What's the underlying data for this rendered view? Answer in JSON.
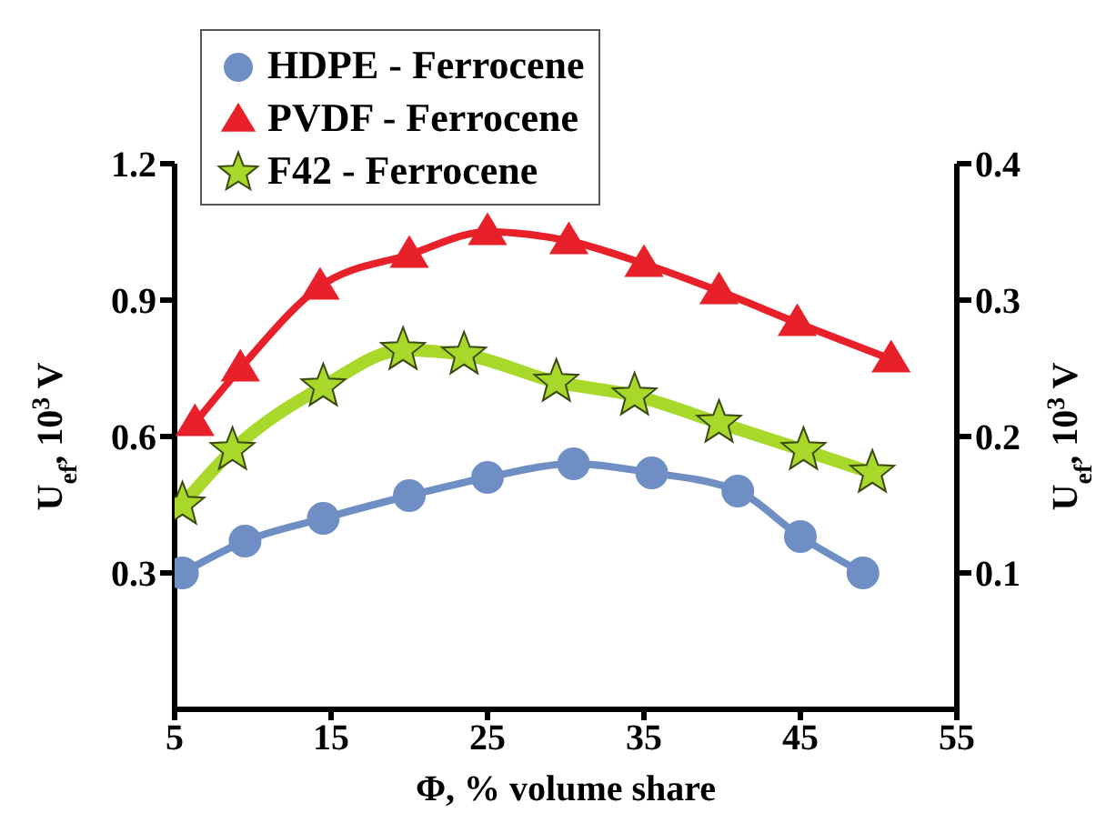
{
  "chart_data": {
    "type": "line",
    "xlabel": "Φ, % volume share",
    "ylabel": "U$_{ef}$, 10$^{3}$ V",
    "y2label": "U$_{ef}$, 10$^{3}$ V",
    "xlim": [
      5,
      55
    ],
    "xticks": [
      5,
      15,
      25,
      35,
      45,
      55
    ],
    "ylim": [
      0,
      1.2
    ],
    "yticks": [
      0.3,
      0.6,
      0.9,
      1.2
    ],
    "y2lim": [
      0,
      0.4
    ],
    "y2ticks": [
      0.1,
      0.2,
      0.3,
      0.4
    ],
    "grid": false,
    "legend": "top left",
    "line_style": "solid",
    "series": [
      {
        "name": "HDPE - Ferrocene",
        "color": "#6f8fc4",
        "marker": "circle",
        "x": [
          5.5,
          9.5,
          14.5,
          20,
          25,
          30.5,
          35.5,
          41,
          45,
          49
        ],
        "values": [
          0.3,
          0.37,
          0.42,
          0.47,
          0.51,
          0.54,
          0.52,
          0.48,
          0.38,
          0.3
        ]
      },
      {
        "name": "PVDF - Ferrocene",
        "color": "#e8202a",
        "marker": "triangle",
        "x": [
          6.3,
          9.2,
          14.3,
          20,
          25,
          30.2,
          35,
          39.8,
          44.8,
          50.8
        ],
        "values": [
          0.63,
          0.75,
          0.93,
          1.0,
          1.05,
          1.03,
          0.98,
          0.92,
          0.85,
          0.77
        ]
      },
      {
        "name": "F42 - Ferrocene",
        "color": "#a8d82a",
        "marker": "star",
        "x": [
          5.5,
          8.7,
          14.5,
          19.6,
          23.5,
          29.4,
          34.4,
          39.8,
          45.2,
          49.6
        ],
        "values": [
          0.45,
          0.57,
          0.71,
          0.79,
          0.78,
          0.72,
          0.69,
          0.63,
          0.57,
          0.52
        ]
      }
    ]
  }
}
